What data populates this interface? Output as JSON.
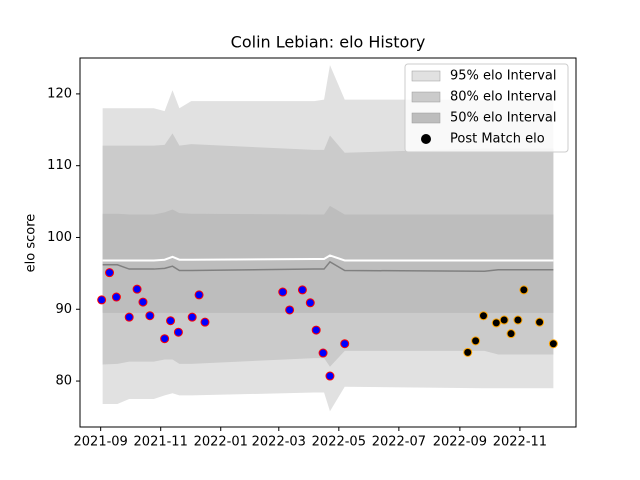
{
  "chart_data": {
    "type": "band",
    "title": "Colin Lebian: elo History",
    "ylabel": "elo score",
    "xlim": [
      "2021-08-11",
      "2022-12-28"
    ],
    "ylim": [
      73.6,
      125
    ],
    "xticks": [
      {
        "value": "2021-09-01",
        "label": "2021-09"
      },
      {
        "value": "2021-11-01",
        "label": "2021-11"
      },
      {
        "value": "2022-01-01",
        "label": "2022-01"
      },
      {
        "value": "2022-03-01",
        "label": "2022-03"
      },
      {
        "value": "2022-05-01",
        "label": "2022-05"
      },
      {
        "value": "2022-07-01",
        "label": "2022-07"
      },
      {
        "value": "2022-09-01",
        "label": "2022-09"
      },
      {
        "value": "2022-11-01",
        "label": "2022-11"
      }
    ],
    "yticks": [
      80,
      90,
      100,
      110,
      120
    ],
    "legend": "upper right",
    "bands": {
      "x": [
        "2021-09-03",
        "2021-09-18",
        "2021-09-30",
        "2021-10-25",
        "2021-11-05",
        "2021-11-13",
        "2021-11-20",
        "2021-12-02",
        "2022-04-06",
        "2022-04-16",
        "2022-04-22",
        "2022-05-07",
        "2022-09-26",
        "2022-10-10",
        "2022-12-05"
      ],
      "series": [
        {
          "name": "95% elo Interval",
          "color": "#e1e1e1",
          "upper": [
            118,
            118,
            118,
            118,
            117.6,
            120.5,
            118,
            119,
            119,
            119.2,
            124,
            119.2,
            119.2,
            119.2,
            119.2
          ],
          "lower": [
            76.8,
            76.8,
            77.5,
            77.5,
            78,
            78.3,
            78,
            78,
            78.4,
            78.4,
            75.8,
            79.2,
            79,
            79,
            79
          ]
        },
        {
          "name": "80% elo Interval",
          "color": "#cbcbcb",
          "upper": [
            112.8,
            112.8,
            112.8,
            112.8,
            112.9,
            114.5,
            112.8,
            113,
            112.2,
            112.2,
            114.2,
            111.8,
            112.4,
            112.4,
            112.4
          ],
          "lower": [
            82.3,
            82.4,
            82.7,
            82.7,
            83,
            83,
            82.4,
            82.4,
            83.2,
            83.2,
            82,
            84.2,
            84.2,
            83.7,
            83.7
          ]
        },
        {
          "name": "50% elo Interval",
          "color": "#bdbdbd",
          "upper": [
            103.3,
            103.3,
            103.2,
            103.2,
            103.5,
            103.9,
            103.4,
            103.3,
            103.2,
            103.2,
            104.4,
            103.2,
            103.2,
            103.2,
            103.2
          ],
          "lower": [
            89.5,
            89.5,
            89.5,
            89.5,
            89.5,
            89.5,
            89.5,
            89.5,
            89.5,
            89.5,
            89.5,
            89.5,
            89.5,
            89.5,
            89.5
          ]
        }
      ],
      "lines": [
        {
          "color": "#ffffff",
          "values": [
            96.8,
            96.8,
            96.8,
            96.8,
            96.9,
            97.3,
            96.9,
            96.9,
            97,
            97,
            97.5,
            96.8,
            96.8,
            96.8,
            96.8
          ]
        },
        {
          "color": "#808080",
          "values": [
            96.2,
            96.2,
            95.6,
            95.6,
            95.7,
            96,
            95.4,
            95.4,
            95.6,
            95.6,
            96.6,
            95.4,
            95.3,
            95.5,
            95.5
          ]
        }
      ]
    },
    "points": {
      "name": "Post Match elo",
      "color": "#000000",
      "x": [
        "2021-09-02",
        "2021-09-10",
        "2021-09-17",
        "2021-09-30",
        "2021-10-08",
        "2021-10-14",
        "2021-10-21",
        "2021-11-05",
        "2021-11-11",
        "2021-11-19",
        "2021-12-03",
        "2021-12-10",
        "2021-12-16",
        "2022-03-05",
        "2022-03-12",
        "2022-03-25",
        "2022-04-02",
        "2022-04-08",
        "2022-04-15",
        "2022-04-22",
        "2022-05-07",
        "2022-09-09",
        "2022-09-17",
        "2022-09-25",
        "2022-10-08",
        "2022-10-16",
        "2022-10-23",
        "2022-10-30",
        "2022-11-05",
        "2022-11-21",
        "2022-12-05"
      ],
      "values": [
        91.3,
        95.1,
        91.7,
        88.9,
        92.8,
        91.0,
        89.1,
        85.9,
        88.4,
        86.8,
        88.9,
        92.0,
        88.2,
        92.4,
        89.9,
        92.7,
        90.9,
        87.1,
        83.9,
        80.7,
        85.2,
        84.0,
        85.6,
        89.1,
        88.1,
        88.5,
        86.6,
        88.5,
        92.7,
        88.2,
        85.2
      ],
      "face_colors": [
        "#0000ff",
        "#0000ff",
        "#0000ff",
        "#0000ff",
        "#0000ff",
        "#0000ff",
        "#0000ff",
        "#0000ff",
        "#0000ff",
        "#0000ff",
        "#0000ff",
        "#0000ff",
        "#0000ff",
        "#0000ff",
        "#0000ff",
        "#0000ff",
        "#0000ff",
        "#0000ff",
        "#0000ff",
        "#0000ff",
        "#0000ff",
        "#000000",
        "#000000",
        "#000000",
        "#000000",
        "#000000",
        "#000000",
        "#000000",
        "#000000",
        "#000000",
        "#000000"
      ],
      "edge_colors": [
        "#ff0000",
        "#ff0000",
        "#ff0000",
        "#ff0000",
        "#ff0000",
        "#ff0000",
        "#ff0000",
        "#ff0000",
        "#ff0000",
        "#ff0000",
        "#ff0000",
        "#ff0000",
        "#ff0000",
        "#ff0000",
        "#ff0000",
        "#ff0000",
        "#ff0000",
        "#ff0000",
        "#ff0000",
        "#ff0000",
        "#ff0000",
        "#ffa500",
        "#ffa500",
        "#ffa500",
        "#ffa500",
        "#ffa500",
        "#ffa500",
        "#ffa500",
        "#ffa500",
        "#ffa500",
        "#ffa500"
      ]
    }
  }
}
